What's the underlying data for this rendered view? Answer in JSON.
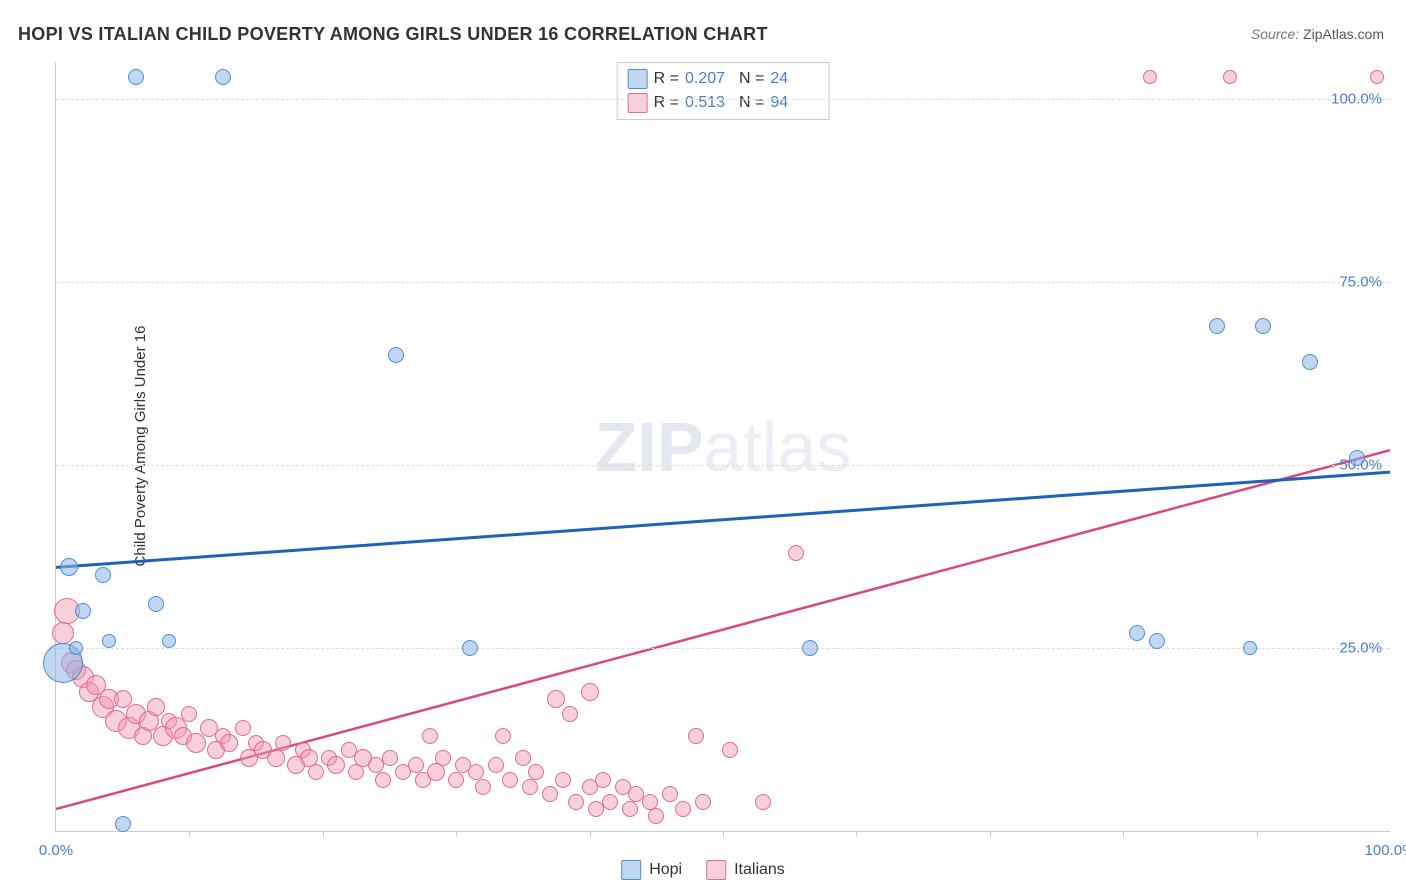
{
  "title": "HOPI VS ITALIAN CHILD POVERTY AMONG GIRLS UNDER 16 CORRELATION CHART",
  "source_label": "Source: ",
  "source_value": "ZipAtlas.com",
  "ylabel": "Child Poverty Among Girls Under 16",
  "watermark_zip": "ZIP",
  "watermark_rest": "atlas",
  "chart": {
    "type": "scatter",
    "xlim": [
      0,
      100
    ],
    "ylim": [
      0,
      105
    ],
    "xtick_label_left": "0.0%",
    "xtick_label_right": "100.0%",
    "xtick_minor_positions": [
      10,
      20,
      30,
      40,
      50,
      60,
      70,
      80,
      90
    ],
    "ygrid": [
      {
        "y": 25,
        "label": "25.0%"
      },
      {
        "y": 50,
        "label": "50.0%"
      },
      {
        "y": 75,
        "label": "75.0%"
      },
      {
        "y": 100,
        "label": "100.0%"
      }
    ],
    "background_color": "#ffffff",
    "grid_color": "#dddddd",
    "axis_color": "#cccccc",
    "tick_label_color": "#4a7ec9"
  },
  "series": {
    "hopi": {
      "label": "Hopi",
      "color_fill": "rgba(140,180,230,0.55)",
      "color_stroke": "#4a8fd6",
      "trend_color": "#1e63b8",
      "trend_width": 3,
      "r": "0.207",
      "n": "24",
      "trend": {
        "x1": 0,
        "y1": 36,
        "x2": 100,
        "y2": 49
      },
      "points": [
        {
          "x": 0.5,
          "y": 23,
          "r": 20
        },
        {
          "x": 1.0,
          "y": 36,
          "r": 9
        },
        {
          "x": 1.5,
          "y": 25,
          "r": 7
        },
        {
          "x": 2.0,
          "y": 30,
          "r": 8
        },
        {
          "x": 3.5,
          "y": 35,
          "r": 8
        },
        {
          "x": 4.0,
          "y": 26,
          "r": 7
        },
        {
          "x": 5.0,
          "y": 1,
          "r": 8
        },
        {
          "x": 6.0,
          "y": 103,
          "r": 8
        },
        {
          "x": 7.5,
          "y": 31,
          "r": 8
        },
        {
          "x": 8.5,
          "y": 26,
          "r": 7
        },
        {
          "x": 12.5,
          "y": 103,
          "r": 8
        },
        {
          "x": 25.5,
          "y": 65,
          "r": 8
        },
        {
          "x": 31.0,
          "y": 25,
          "r": 8
        },
        {
          "x": 56.5,
          "y": 25,
          "r": 8
        },
        {
          "x": 81.0,
          "y": 27,
          "r": 8
        },
        {
          "x": 82.5,
          "y": 26,
          "r": 8
        },
        {
          "x": 87.0,
          "y": 69,
          "r": 8
        },
        {
          "x": 89.5,
          "y": 25,
          "r": 7
        },
        {
          "x": 90.5,
          "y": 69,
          "r": 8
        },
        {
          "x": 94.0,
          "y": 64,
          "r": 8
        },
        {
          "x": 97.5,
          "y": 51,
          "r": 8
        }
      ]
    },
    "italians": {
      "label": "Italians",
      "color_fill": "rgba(240,150,175,0.45)",
      "color_stroke": "#e36a93",
      "trend_color": "#d94880",
      "trend_width": 2.5,
      "r": "0.513",
      "n": "94",
      "trend": {
        "x1": 0,
        "y1": 3,
        "x2": 100,
        "y2": 52
      },
      "points": [
        {
          "x": 0.8,
          "y": 30,
          "r": 13
        },
        {
          "x": 0.5,
          "y": 27,
          "r": 11
        },
        {
          "x": 1.2,
          "y": 23,
          "r": 11
        },
        {
          "x": 1.5,
          "y": 22,
          "r": 10
        },
        {
          "x": 2.0,
          "y": 21,
          "r": 11
        },
        {
          "x": 2.5,
          "y": 19,
          "r": 10
        },
        {
          "x": 3.0,
          "y": 20,
          "r": 10
        },
        {
          "x": 3.5,
          "y": 17,
          "r": 11
        },
        {
          "x": 4.0,
          "y": 18,
          "r": 10
        },
        {
          "x": 4.5,
          "y": 15,
          "r": 11
        },
        {
          "x": 5.0,
          "y": 18,
          "r": 9
        },
        {
          "x": 5.5,
          "y": 14,
          "r": 11
        },
        {
          "x": 6.0,
          "y": 16,
          "r": 10
        },
        {
          "x": 6.5,
          "y": 13,
          "r": 9
        },
        {
          "x": 7.0,
          "y": 15,
          "r": 10
        },
        {
          "x": 7.5,
          "y": 17,
          "r": 9
        },
        {
          "x": 8.0,
          "y": 13,
          "r": 10
        },
        {
          "x": 8.5,
          "y": 15,
          "r": 8
        },
        {
          "x": 9.0,
          "y": 14,
          "r": 11
        },
        {
          "x": 9.5,
          "y": 13,
          "r": 9
        },
        {
          "x": 10.0,
          "y": 16,
          "r": 8
        },
        {
          "x": 10.5,
          "y": 12,
          "r": 10
        },
        {
          "x": 11.5,
          "y": 14,
          "r": 9
        },
        {
          "x": 12.0,
          "y": 11,
          "r": 9
        },
        {
          "x": 12.5,
          "y": 13,
          "r": 8
        },
        {
          "x": 13.0,
          "y": 12,
          "r": 9
        },
        {
          "x": 14.0,
          "y": 14,
          "r": 8
        },
        {
          "x": 14.5,
          "y": 10,
          "r": 9
        },
        {
          "x": 15.0,
          "y": 12,
          "r": 8
        },
        {
          "x": 15.5,
          "y": 11,
          "r": 9
        },
        {
          "x": 16.5,
          "y": 10,
          "r": 9
        },
        {
          "x": 17.0,
          "y": 12,
          "r": 8
        },
        {
          "x": 18.0,
          "y": 9,
          "r": 9
        },
        {
          "x": 18.5,
          "y": 11,
          "r": 8
        },
        {
          "x": 19.0,
          "y": 10,
          "r": 9
        },
        {
          "x": 19.5,
          "y": 8,
          "r": 8
        },
        {
          "x": 20.5,
          "y": 10,
          "r": 8
        },
        {
          "x": 21.0,
          "y": 9,
          "r": 9
        },
        {
          "x": 22.0,
          "y": 11,
          "r": 8
        },
        {
          "x": 22.5,
          "y": 8,
          "r": 8
        },
        {
          "x": 23.0,
          "y": 10,
          "r": 9
        },
        {
          "x": 24.0,
          "y": 9,
          "r": 8
        },
        {
          "x": 24.5,
          "y": 7,
          "r": 8
        },
        {
          "x": 25.0,
          "y": 10,
          "r": 8
        },
        {
          "x": 26.0,
          "y": 8,
          "r": 8
        },
        {
          "x": 27.0,
          "y": 9,
          "r": 8
        },
        {
          "x": 27.5,
          "y": 7,
          "r": 8
        },
        {
          "x": 28.0,
          "y": 13,
          "r": 8
        },
        {
          "x": 28.5,
          "y": 8,
          "r": 9
        },
        {
          "x": 29.0,
          "y": 10,
          "r": 8
        },
        {
          "x": 30.0,
          "y": 7,
          "r": 8
        },
        {
          "x": 30.5,
          "y": 9,
          "r": 8
        },
        {
          "x": 31.5,
          "y": 8,
          "r": 8
        },
        {
          "x": 32.0,
          "y": 6,
          "r": 8
        },
        {
          "x": 33.0,
          "y": 9,
          "r": 8
        },
        {
          "x": 33.5,
          "y": 13,
          "r": 8
        },
        {
          "x": 34.0,
          "y": 7,
          "r": 8
        },
        {
          "x": 35.0,
          "y": 10,
          "r": 8
        },
        {
          "x": 35.5,
          "y": 6,
          "r": 8
        },
        {
          "x": 36.0,
          "y": 8,
          "r": 8
        },
        {
          "x": 37.0,
          "y": 5,
          "r": 8
        },
        {
          "x": 37.5,
          "y": 18,
          "r": 9
        },
        {
          "x": 38.0,
          "y": 7,
          "r": 8
        },
        {
          "x": 38.5,
          "y": 16,
          "r": 8
        },
        {
          "x": 39.0,
          "y": 4,
          "r": 8
        },
        {
          "x": 40.0,
          "y": 6,
          "r": 8
        },
        {
          "x": 40.0,
          "y": 19,
          "r": 9
        },
        {
          "x": 40.5,
          "y": 3,
          "r": 8
        },
        {
          "x": 41.0,
          "y": 7,
          "r": 8
        },
        {
          "x": 41.5,
          "y": 4,
          "r": 8
        },
        {
          "x": 42.5,
          "y": 6,
          "r": 8
        },
        {
          "x": 43.0,
          "y": 3,
          "r": 8
        },
        {
          "x": 43.5,
          "y": 5,
          "r": 8
        },
        {
          "x": 44.5,
          "y": 4,
          "r": 8
        },
        {
          "x": 45.0,
          "y": 2,
          "r": 8
        },
        {
          "x": 46.0,
          "y": 5,
          "r": 8
        },
        {
          "x": 47.0,
          "y": 3,
          "r": 8
        },
        {
          "x": 48.0,
          "y": 13,
          "r": 8
        },
        {
          "x": 48.5,
          "y": 4,
          "r": 8
        },
        {
          "x": 50.5,
          "y": 11,
          "r": 8
        },
        {
          "x": 53.0,
          "y": 4,
          "r": 8
        },
        {
          "x": 55.5,
          "y": 38,
          "r": 8
        },
        {
          "x": 82.0,
          "y": 103,
          "r": 7
        },
        {
          "x": 88.0,
          "y": 103,
          "r": 7
        },
        {
          "x": 99.0,
          "y": 103,
          "r": 7
        }
      ]
    }
  },
  "legend_top": {
    "r_label": "R =",
    "n_label": "N ="
  }
}
